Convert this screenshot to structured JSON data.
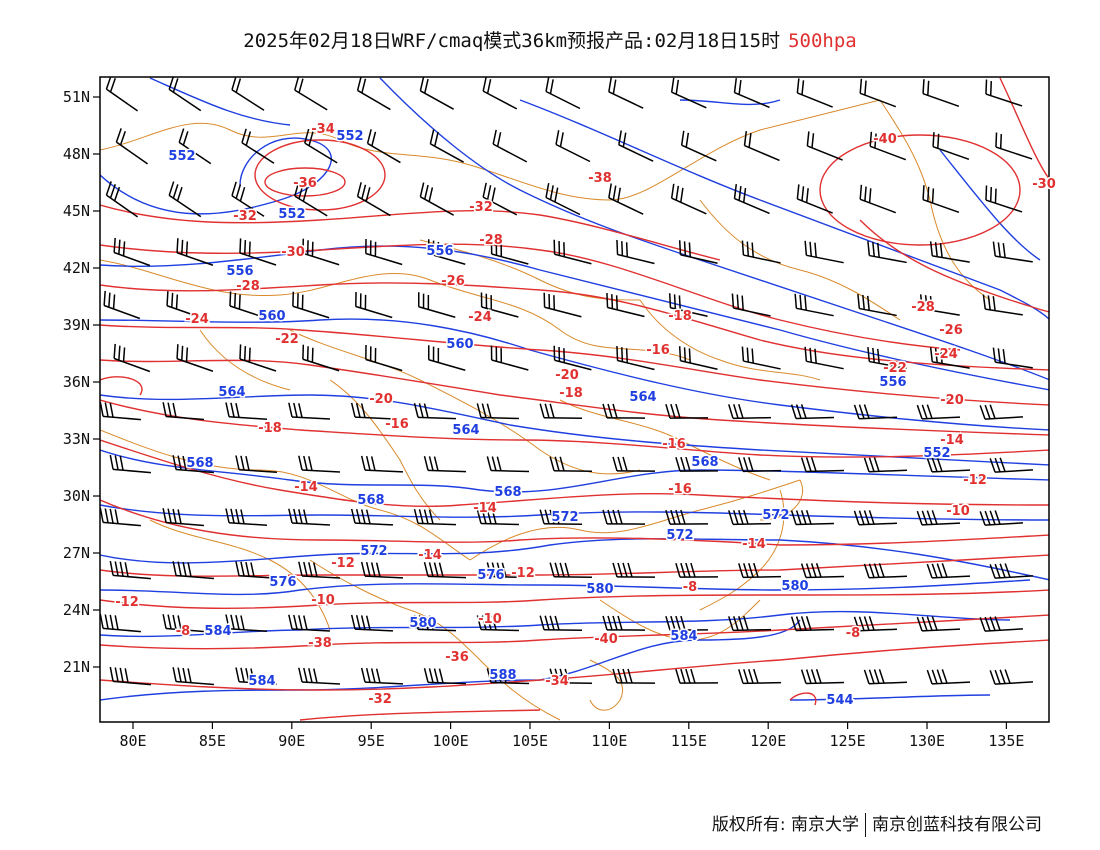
{
  "title": {
    "main": "2025年02月18日WRF/cmaq模式36km预报产品:02月18日15时",
    "level": "500hpa"
  },
  "map": {
    "lon_labels": [
      "80E",
      "85E",
      "90E",
      "95E",
      "100E",
      "105E",
      "110E",
      "115E",
      "120E",
      "125E",
      "130E",
      "135E"
    ],
    "lat_labels": [
      "51N",
      "48N",
      "45N",
      "42N",
      "39N",
      "36N",
      "33N",
      "30N",
      "27N",
      "24N",
      "21N"
    ],
    "colors": {
      "height": "#1f3fe0",
      "temperature": "#e03030",
      "border": "#d98a2b",
      "wind": "#000000"
    },
    "height_labels": [
      "552",
      "552",
      "552",
      "556",
      "556",
      "560",
      "560",
      "564",
      "564",
      "564",
      "568",
      "568",
      "568",
      "568",
      "572",
      "572",
      "572",
      "572",
      "576",
      "576",
      "580",
      "580",
      "580",
      "584",
      "584",
      "584",
      "588",
      "544",
      "556",
      "552"
    ],
    "temp_labels": [
      "-34",
      "-36",
      "-38",
      "-40",
      "-32",
      "-32",
      "-30",
      "-28",
      "-28",
      "-26",
      "-24",
      "-24",
      "-22",
      "-20",
      "-20",
      "-18",
      "-18",
      "-16",
      "-16",
      "-16",
      "-14",
      "-14",
      "-14",
      "-14",
      "-12",
      "-12",
      "-12",
      "-10",
      "-10",
      "-8",
      "-8",
      "-40",
      "-38",
      "-36",
      "-34",
      "-32",
      "-30",
      "-28",
      "-26",
      "-24",
      "-22",
      "-20",
      "-18",
      "-16",
      "-14",
      "-12",
      "-10",
      "-8"
    ],
    "wind_barbs": "north-west to west-southwesterly flow, mostly 20-30 m/s"
  },
  "footer": {
    "left": "版权所有: 南京大学",
    "right": "南京创蓝科技有限公司"
  }
}
